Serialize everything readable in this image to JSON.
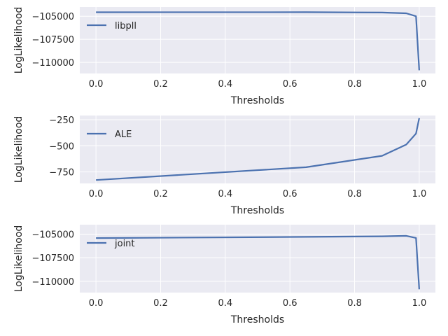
{
  "chart_data": [
    {
      "type": "line",
      "xlabel": "Thresholds",
      "ylabel": "LogLikelihood",
      "xlim": [
        -0.05,
        1.05
      ],
      "ylim": [
        -111200,
        -104000
      ],
      "xticks": [
        0.0,
        0.2,
        0.4,
        0.6,
        0.8,
        1.0
      ],
      "xtick_labels": [
        "0.0",
        "0.2",
        "0.4",
        "0.6",
        "0.8",
        "1.0"
      ],
      "yticks": [
        -105000,
        -107500,
        -110000
      ],
      "ytick_labels": [
        "−105000",
        "−107500",
        "−110000"
      ],
      "grid": true,
      "legend_position": "upper-left",
      "color": "#4c72b0",
      "series": [
        {
          "name": "libpll",
          "x": [
            0.0,
            0.65,
            0.885,
            0.96,
            0.99,
            1.0
          ],
          "y": [
            -104570,
            -104560,
            -104600,
            -104680,
            -105000,
            -110850
          ]
        }
      ]
    },
    {
      "type": "line",
      "xlabel": "Thresholds",
      "ylabel": "LogLikelihood",
      "xlim": [
        -0.05,
        1.05
      ],
      "ylim": [
        -860,
        -210
      ],
      "xticks": [
        0.0,
        0.2,
        0.4,
        0.6,
        0.8,
        1.0
      ],
      "xtick_labels": [
        "0.0",
        "0.2",
        "0.4",
        "0.6",
        "0.8",
        "1.0"
      ],
      "yticks": [
        -250,
        -500,
        -750
      ],
      "ytick_labels": [
        "−250",
        "−500",
        "−750"
      ],
      "grid": true,
      "legend_position": "upper-left",
      "color": "#4c72b0",
      "series": [
        {
          "name": "ALE",
          "x": [
            0.0,
            0.65,
            0.885,
            0.96,
            0.99,
            1.0
          ],
          "y": [
            -828,
            -705,
            -596,
            -488,
            -383,
            -235
          ]
        }
      ]
    },
    {
      "type": "line",
      "xlabel": "Thresholds",
      "ylabel": "LogLikelihood",
      "xlim": [
        -0.05,
        1.05
      ],
      "ylim": [
        -111200,
        -104000
      ],
      "xticks": [
        0.0,
        0.2,
        0.4,
        0.6,
        0.8,
        1.0
      ],
      "xtick_labels": [
        "0.0",
        "0.2",
        "0.4",
        "0.6",
        "0.8",
        "1.0"
      ],
      "yticks": [
        -105000,
        -107500,
        -110000
      ],
      "ytick_labels": [
        "−105000",
        "−107500",
        "−110000"
      ],
      "grid": true,
      "legend_position": "upper-left",
      "color": "#4c72b0",
      "series": [
        {
          "name": "joint",
          "x": [
            0.0,
            0.65,
            0.885,
            0.96,
            0.99,
            1.0
          ],
          "y": [
            -105420,
            -105290,
            -105230,
            -105180,
            -105400,
            -110850
          ]
        }
      ]
    }
  ]
}
